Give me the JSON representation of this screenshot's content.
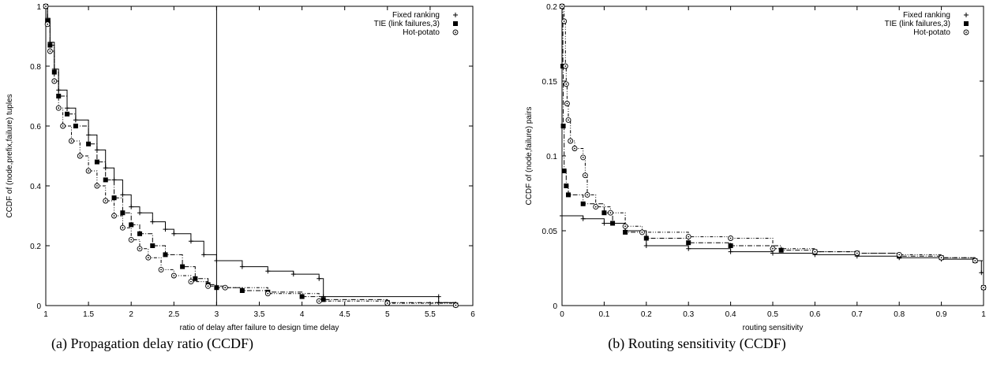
{
  "chart_data": [
    {
      "type": "line",
      "title": "",
      "caption": "(a) Propagation delay ratio (CCDF)",
      "xlabel": "ratio of delay after failure to design time delay",
      "ylabel": "CCDF of (node,prefix,failure) tuples",
      "xlim": [
        1,
        6
      ],
      "ylim": [
        0,
        1
      ],
      "xticks": [
        "1",
        "1.5",
        "2",
        "2.5",
        "3",
        "3.5",
        "4",
        "4.5",
        "5",
        "5.5",
        "6"
      ],
      "yticks": [
        "0",
        "0.2",
        "0.4",
        "0.6",
        "0.8",
        "1"
      ],
      "grid": false,
      "legend_position": "top-right",
      "vertical_line_x": 3,
      "series": [
        {
          "name": "Fixed ranking",
          "marker": "plus",
          "values": [
            [
              1,
              1
            ],
            [
              1.02,
              0.96
            ],
            [
              1.05,
              0.88
            ],
            [
              1.1,
              0.79
            ],
            [
              1.15,
              0.72
            ],
            [
              1.25,
              0.66
            ],
            [
              1.35,
              0.62
            ],
            [
              1.5,
              0.57
            ],
            [
              1.6,
              0.52
            ],
            [
              1.7,
              0.46
            ],
            [
              1.8,
              0.42
            ],
            [
              1.9,
              0.37
            ],
            [
              2.0,
              0.33
            ],
            [
              2.1,
              0.31
            ],
            [
              2.25,
              0.28
            ],
            [
              2.4,
              0.255
            ],
            [
              2.5,
              0.24
            ],
            [
              2.7,
              0.215
            ],
            [
              2.85,
              0.17
            ],
            [
              3.0,
              0.15
            ],
            [
              3.3,
              0.13
            ],
            [
              3.6,
              0.115
            ],
            [
              3.9,
              0.105
            ],
            [
              4.2,
              0.09
            ],
            [
              4.25,
              0.03
            ],
            [
              5.6,
              0.03
            ],
            [
              5.6,
              0.01
            ],
            [
              5.8,
              0.005
            ]
          ]
        },
        {
          "name": "TIE (link failures,3)",
          "marker": "square",
          "values": [
            [
              1,
              1
            ],
            [
              1.02,
              0.95
            ],
            [
              1.05,
              0.87
            ],
            [
              1.1,
              0.78
            ],
            [
              1.15,
              0.7
            ],
            [
              1.25,
              0.64
            ],
            [
              1.35,
              0.6
            ],
            [
              1.5,
              0.54
            ],
            [
              1.6,
              0.48
            ],
            [
              1.7,
              0.42
            ],
            [
              1.8,
              0.36
            ],
            [
              1.9,
              0.31
            ],
            [
              2.0,
              0.27
            ],
            [
              2.1,
              0.24
            ],
            [
              2.25,
              0.2
            ],
            [
              2.4,
              0.17
            ],
            [
              2.6,
              0.13
            ],
            [
              2.75,
              0.09
            ],
            [
              2.9,
              0.07
            ],
            [
              3.0,
              0.06
            ],
            [
              3.3,
              0.05
            ],
            [
              3.6,
              0.045
            ],
            [
              4.0,
              0.03
            ],
            [
              4.25,
              0.02
            ],
            [
              5.0,
              0.01
            ],
            [
              5.8,
              0.002
            ]
          ]
        },
        {
          "name": "Hot-potato",
          "marker": "circle",
          "values": [
            [
              1,
              1
            ],
            [
              1.02,
              0.94
            ],
            [
              1.05,
              0.85
            ],
            [
              1.1,
              0.75
            ],
            [
              1.15,
              0.66
            ],
            [
              1.2,
              0.6
            ],
            [
              1.3,
              0.55
            ],
            [
              1.4,
              0.5
            ],
            [
              1.5,
              0.45
            ],
            [
              1.6,
              0.4
            ],
            [
              1.7,
              0.35
            ],
            [
              1.8,
              0.3
            ],
            [
              1.9,
              0.26
            ],
            [
              2.0,
              0.22
            ],
            [
              2.1,
              0.19
            ],
            [
              2.2,
              0.16
            ],
            [
              2.35,
              0.12
            ],
            [
              2.5,
              0.1
            ],
            [
              2.7,
              0.08
            ],
            [
              2.9,
              0.065
            ],
            [
              3.1,
              0.06
            ],
            [
              3.6,
              0.04
            ],
            [
              4.2,
              0.015
            ],
            [
              5.0,
              0.008
            ],
            [
              5.8,
              0.001
            ]
          ]
        }
      ]
    },
    {
      "type": "line",
      "title": "",
      "caption": "(b) Routing sensitivity (CCDF)",
      "xlabel": "routing sensitivity",
      "ylabel": "CCDF of (node,failure) pairs",
      "xlim": [
        0,
        1
      ],
      "ylim": [
        0,
        0.2
      ],
      "xticks": [
        "0",
        "0.1",
        "0.2",
        "0.3",
        "0.4",
        "0.5",
        "0.6",
        "0.7",
        "0.8",
        "0.9",
        "1"
      ],
      "yticks": [
        "0",
        "0.05",
        "0.1",
        "0.15",
        "0.2"
      ],
      "grid": false,
      "legend_position": "top-right",
      "series": [
        {
          "name": "Fixed ranking",
          "marker": "plus",
          "values": [
            [
              0,
              0.06
            ],
            [
              0.05,
              0.058
            ],
            [
              0.1,
              0.055
            ],
            [
              0.15,
              0.05
            ],
            [
              0.2,
              0.04
            ],
            [
              0.3,
              0.038
            ],
            [
              0.4,
              0.036
            ],
            [
              0.5,
              0.035
            ],
            [
              0.6,
              0.034
            ],
            [
              0.7,
              0.033
            ],
            [
              0.8,
              0.032
            ],
            [
              0.9,
              0.031
            ],
            [
              0.98,
              0.03
            ],
            [
              0.995,
              0.022
            ],
            [
              1.0,
              0.012
            ]
          ]
        },
        {
          "name": "TIE (link failures,3)",
          "marker": "square",
          "values": [
            [
              0,
              0.2
            ],
            [
              0.002,
              0.16
            ],
            [
              0.003,
              0.12
            ],
            [
              0.005,
              0.09
            ],
            [
              0.01,
              0.08
            ],
            [
              0.015,
              0.074
            ],
            [
              0.05,
              0.068
            ],
            [
              0.1,
              0.062
            ],
            [
              0.12,
              0.055
            ],
            [
              0.15,
              0.049
            ],
            [
              0.2,
              0.045
            ],
            [
              0.3,
              0.042
            ],
            [
              0.4,
              0.04
            ],
            [
              0.52,
              0.037
            ],
            [
              0.6,
              0.036
            ],
            [
              0.7,
              0.035
            ],
            [
              0.8,
              0.033
            ],
            [
              0.9,
              0.032
            ],
            [
              0.98,
              0.03
            ],
            [
              1.0,
              0.012
            ]
          ]
        },
        {
          "name": "Hot-potato",
          "marker": "circle",
          "values": [
            [
              0,
              0.2
            ],
            [
              0.005,
              0.19
            ],
            [
              0.008,
              0.16
            ],
            [
              0.01,
              0.148
            ],
            [
              0.012,
              0.135
            ],
            [
              0.015,
              0.124
            ],
            [
              0.02,
              0.11
            ],
            [
              0.03,
              0.105
            ],
            [
              0.05,
              0.099
            ],
            [
              0.055,
              0.087
            ],
            [
              0.06,
              0.074
            ],
            [
              0.08,
              0.066
            ],
            [
              0.115,
              0.062
            ],
            [
              0.15,
              0.053
            ],
            [
              0.19,
              0.049
            ],
            [
              0.3,
              0.046
            ],
            [
              0.4,
              0.045
            ],
            [
              0.5,
              0.038
            ],
            [
              0.6,
              0.036
            ],
            [
              0.7,
              0.035
            ],
            [
              0.8,
              0.034
            ],
            [
              0.9,
              0.032
            ],
            [
              0.98,
              0.03
            ],
            [
              1.0,
              0.012
            ]
          ]
        }
      ]
    }
  ]
}
